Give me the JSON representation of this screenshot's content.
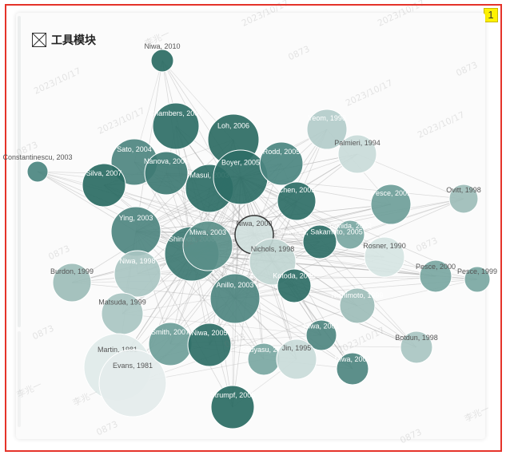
{
  "badge": "1",
  "module": {
    "title": "工具模块",
    "icon": "broken-image-icon"
  },
  "watermark": {
    "date": "2023/10/17",
    "code": "0873",
    "name": "李兆一"
  },
  "graph": {
    "nodes": [
      {
        "id": "Niwa, 2010"
      },
      {
        "id": "Chambers, 2007"
      },
      {
        "id": "Loh, 2006"
      },
      {
        "id": "Sato, 2004"
      },
      {
        "id": "Nanova, 2006"
      },
      {
        "id": "Silva, 2007"
      },
      {
        "id": "Masui, 2003"
      },
      {
        "id": "Boyer, 2005"
      },
      {
        "id": "Rodd, 2005"
      },
      {
        "id": "Yeom, 1996"
      },
      {
        "id": "Palmieri, 1994"
      },
      {
        "id": "Chen, 2005"
      },
      {
        "id": "Pesce, 2001"
      },
      {
        "id": "Ovitt, 1998"
      },
      {
        "id": "Constantinescu, 2003"
      },
      {
        "id": "Ying, 2003"
      },
      {
        "id": "Tomida, 2002"
      },
      {
        "id": "Okumura, Sakamoto, 2005"
      },
      {
        "id": "Niwa, 2000"
      },
      {
        "id": "Shinoda, 2008"
      },
      {
        "id": "Miwa, 2003"
      },
      {
        "id": "Nichols, 1998"
      },
      {
        "id": "Rosner, 1990"
      },
      {
        "id": "Burdon, 1999"
      },
      {
        "id": "Niwa, 1998"
      },
      {
        "id": "Kotoda, 2005"
      },
      {
        "id": "Pesce, 2000"
      },
      {
        "id": "Pesce, 1999"
      },
      {
        "id": "Matsuda, 1999"
      },
      {
        "id": "Anillo, 2003"
      },
      {
        "id": "Nishimoto, 1999"
      },
      {
        "id": "Niwa, 2001"
      },
      {
        "id": "Martin, 1981"
      },
      {
        "id": "Evans, 1981"
      },
      {
        "id": "Smith, 2007"
      },
      {
        "id": "Niwa, 2005"
      },
      {
        "id": "Tokuyasu, 2003"
      },
      {
        "id": "Jin, 1995"
      },
      {
        "id": "Botdun, 1998"
      },
      {
        "id": "Niwa, 2002"
      },
      {
        "id": "Strumpf, 2005"
      }
    ]
  }
}
